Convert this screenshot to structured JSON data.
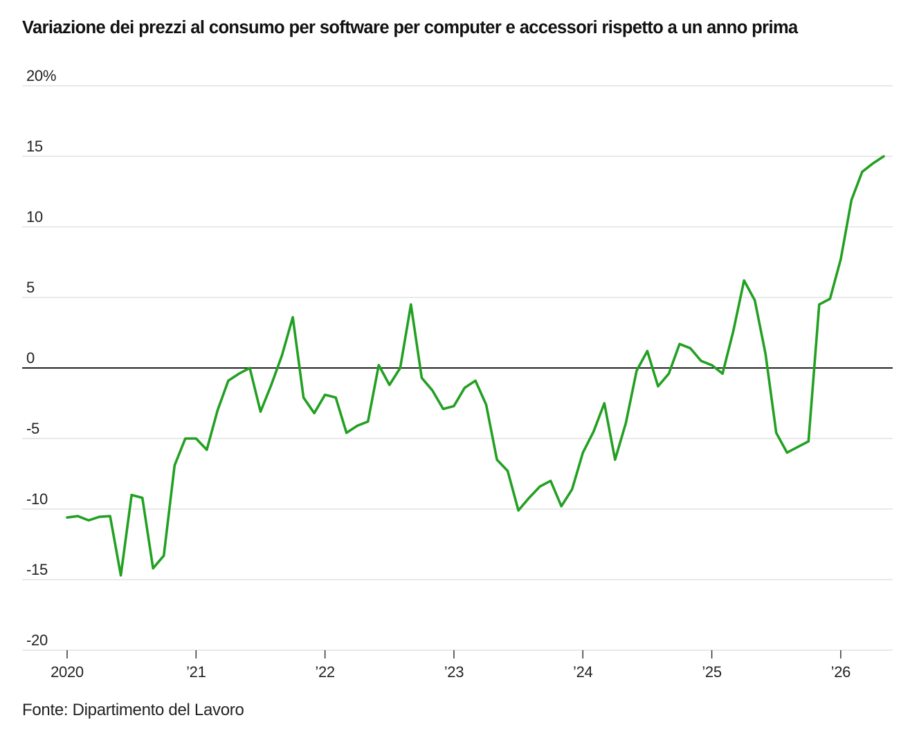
{
  "title": "Variazione dei prezzi al consumo per software per computer e accessori rispetto a un anno prima",
  "source": "Fonte: Dipartimento del Lavoro",
  "chart_data": {
    "type": "line",
    "title": "Variazione dei prezzi al consumo per software per computer e accessori rispetto a un anno prima",
    "xlabel": "",
    "ylabel": "",
    "ylim": [
      -20,
      20
    ],
    "y_ticks": [
      20,
      15,
      10,
      5,
      0,
      -5,
      -10,
      -15,
      -20
    ],
    "y_tick_labels": [
      "20%",
      "15",
      "10",
      "5",
      "0",
      "-5",
      "-10",
      "-15",
      "-20"
    ],
    "x_ticks": [
      "2020-01",
      "2021-01",
      "2022-01",
      "2023-01",
      "2024-01",
      "2025-01",
      "2026-01"
    ],
    "x_tick_labels": [
      "2020",
      "’21",
      "’22",
      "’23",
      "’24",
      "’25",
      "’26"
    ],
    "grid": true,
    "line_color": "#22a022",
    "zero_line_color": "#222222",
    "series": [
      {
        "x": [
          "2020-01",
          "2020-02",
          "2020-03",
          "2020-04",
          "2020-05",
          "2020-06",
          "2020-07",
          "2020-08",
          "2020-09",
          "2020-10",
          "2020-11",
          "2020-12",
          "2021-01",
          "2021-02",
          "2021-03",
          "2021-04",
          "2021-05",
          "2021-06",
          "2021-07",
          "2021-08",
          "2021-09",
          "2021-10",
          "2021-11",
          "2021-12",
          "2022-01",
          "2022-02",
          "2022-03",
          "2022-04",
          "2022-05",
          "2022-06",
          "2022-07",
          "2022-08",
          "2022-09",
          "2022-10",
          "2022-11",
          "2022-12",
          "2023-01",
          "2023-02",
          "2023-03",
          "2023-04",
          "2023-05",
          "2023-06",
          "2023-07",
          "2023-08",
          "2023-09",
          "2023-10",
          "2023-11",
          "2023-12",
          "2024-01",
          "2024-02",
          "2024-03",
          "2024-04",
          "2024-05",
          "2024-06",
          "2024-07",
          "2024-08",
          "2024-09",
          "2024-10",
          "2024-11",
          "2024-12",
          "2025-01",
          "2025-02",
          "2025-03",
          "2025-04",
          "2025-05",
          "2025-06",
          "2025-07",
          "2025-08",
          "2025-09",
          "2025-10",
          "2025-11",
          "2025-12",
          "2026-01",
          "2026-02",
          "2026-03",
          "2026-04",
          "2026-05"
        ],
        "values": [
          -10.6,
          -10.5,
          -10.8,
          -10.55,
          -10.5,
          -14.7,
          -9.0,
          -9.2,
          -14.2,
          -13.3,
          -6.9,
          -5.0,
          -5.0,
          -5.8,
          -3.0,
          -0.9,
          -0.4,
          0.0,
          -3.1,
          -1.2,
          0.9,
          3.6,
          -2.1,
          -3.2,
          -1.9,
          -2.1,
          -4.6,
          -4.1,
          -3.8,
          0.2,
          -1.2,
          0.0,
          4.5,
          -0.7,
          -1.6,
          -2.9,
          -2.7,
          -1.4,
          -0.9,
          -2.6,
          -6.5,
          -7.3,
          -10.1,
          -9.2,
          -8.4,
          -8.0,
          -9.8,
          -8.6,
          -6.0,
          -4.5,
          -2.5,
          -6.5,
          -3.9,
          -0.2,
          1.2,
          -1.3,
          -0.4,
          1.7,
          1.4,
          0.5,
          0.2,
          -0.4,
          2.6,
          6.2,
          4.8,
          1.0,
          -4.6,
          -6.0,
          -5.6,
          -5.2,
          4.5,
          4.9,
          7.7,
          11.9,
          13.9,
          14.5,
          15.0
        ]
      }
    ]
  }
}
